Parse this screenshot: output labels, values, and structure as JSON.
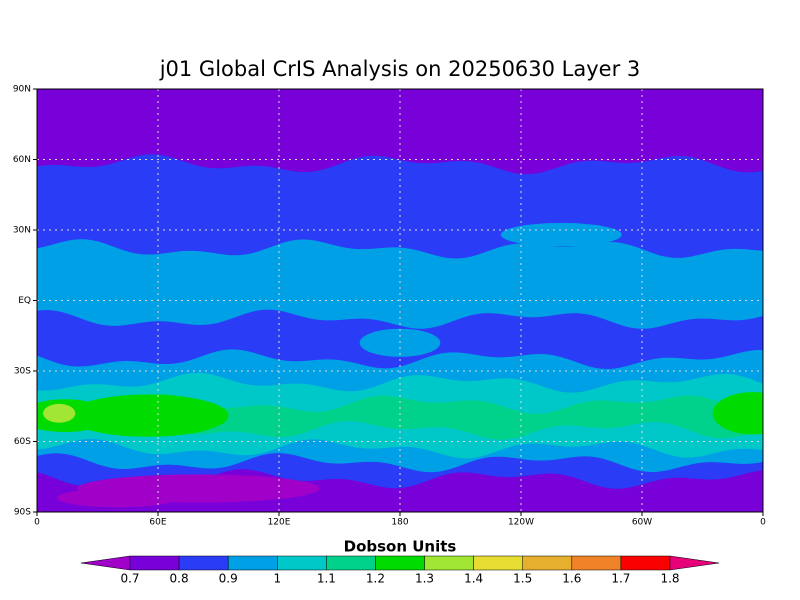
{
  "title": "j01 Global CrIS Analysis on 20250630 Layer 3",
  "map": {
    "lon_ticks": [
      0,
      {
        "value": 60,
        "label": "60E"
      },
      {
        "value": 120,
        "label": "120E"
      },
      180,
      {
        "value": 240,
        "label": "120W"
      },
      {
        "value": 300,
        "label": "60W"
      },
      {
        "value": 360,
        "label": "0"
      }
    ],
    "lat_ticks": [
      {
        "value": 90,
        "label": "90N"
      },
      {
        "value": 60,
        "label": "60N"
      },
      {
        "value": 30,
        "label": "30N"
      },
      {
        "value": 0,
        "label": "EQ"
      },
      {
        "value": -30,
        "label": "30S"
      },
      {
        "value": -60,
        "label": "60S"
      },
      {
        "value": -90,
        "label": "90S"
      }
    ]
  },
  "colorbar": {
    "label": "Dobson Units",
    "levels": [
      0.7,
      0.8,
      0.9,
      1,
      1.1,
      1.2,
      1.3,
      1.4,
      1.5,
      1.6,
      1.7,
      1.8
    ],
    "colors": [
      "#a000c8",
      "#7800d8",
      "#2a3cf5",
      "#00a0e6",
      "#00c8c8",
      "#00d28c",
      "#00dc00",
      "#a0e632",
      "#e6dc32",
      "#e6af2d",
      "#f08228",
      "#fa0000",
      "#e6007a"
    ]
  }
}
